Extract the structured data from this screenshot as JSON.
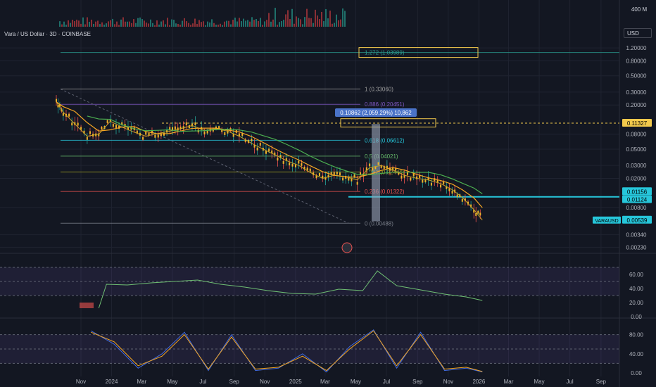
{
  "header": {
    "title": "Vara / US Dollar · 3D · COINBASE",
    "currency": "USD"
  },
  "colors": {
    "background": "#131722",
    "grid": "#1f2330",
    "up": "#26a69a",
    "down": "#ef5350",
    "candle_body": "#f0b429",
    "ema_orange": "#f5a623",
    "sma_green": "#4caf50",
    "rsi": "#6fbf73",
    "stoch_k": "#3f6ae0",
    "stoch_d": "#f5a623",
    "yellow_line": "#f2c94c"
  },
  "chart_data": [
    {
      "type": "line",
      "title": "Vara / US Dollar · 3D · COINBASE",
      "symbol": "VARAUSD",
      "scale": "log",
      "x_ticks": [
        "Nov",
        "2024",
        "Mar",
        "May",
        "Jul",
        "Sep",
        "Nov",
        "2025",
        "Mar",
        "May",
        "Jul",
        "Sep",
        "Nov",
        "2026",
        "Mar",
        "May",
        "Jul",
        "Sep"
      ],
      "y_ticks": [
        "1.20000",
        "0.80000",
        "0.50000",
        "0.30000",
        "0.20000",
        "0.08000",
        "0.05000",
        "0.03000",
        "0.02000",
        "0.00800",
        "0.00340",
        "0.00230"
      ],
      "series": [
        {
          "name": "",
          "x": [
            "2023-10-01",
            "2023-10-10",
            "2023-10-25",
            "2023-11-10",
            "2023-11-25",
            "2023-12-10",
            "2023-12-25",
            "2024-01-10",
            "2024-01-25",
            "2024-02-10",
            "2024-02-25",
            "2024-03-10",
            "2024-03-25",
            "2024-04-10",
            "2024-04-25",
            "2024-05-10",
            "2024-05-25",
            "2024-06-10",
            "2024-06-25",
            "2024-07-10",
            "2024-07-25",
            "2024-08-10",
            "2024-08-25",
            "2024-09-10",
            "2024-09-25",
            "2024-10-10",
            "2024-10-25",
            "2024-11-10",
            "2024-11-25",
            "2024-12-10",
            "2024-12-25",
            "2025-01-10",
            "2025-01-25",
            "2025-02-10",
            "2025-02-25",
            "2025-03-10",
            "2025-03-25",
            "2025-04-05"
          ],
          "values": [
            0.22,
            0.16,
            0.11,
            0.075,
            0.08,
            0.12,
            0.1,
            0.085,
            0.075,
            0.082,
            0.088,
            0.095,
            0.105,
            0.09,
            0.095,
            0.088,
            0.075,
            0.06,
            0.05,
            0.042,
            0.035,
            0.03,
            0.024,
            0.02,
            0.022,
            0.021,
            0.019,
            0.028,
            0.03,
            0.026,
            0.022,
            0.02,
            0.019,
            0.017,
            0.014,
            0.011,
            0.0075,
            0.00539
          ]
        }
      ],
      "price_labels": [
        "0.11327",
        "0.01156",
        "0.01124",
        "0.00539"
      ],
      "fib_levels": [
        {
          "label": "1.272 (1.03989)"
        },
        {
          "label": "1 (0.33060)"
        },
        {
          "label": "0.886 (0.20451)"
        },
        {
          "label": "0.618 (0.06612)"
        },
        {
          "label": "0.5 (0.04021)"
        },
        {
          "label": "0.382 (0.02446)"
        },
        {
          "label": "0.236 (0.01322)"
        },
        {
          "label": "0 (0.00488)"
        }
      ],
      "measure_label": "0.10862 (2,059.29%) 10,862",
      "volume_label": "400 M"
    },
    {
      "type": "line",
      "title": "",
      "y_ticks": [
        "60.00",
        "40.00",
        "20.00",
        "0.00"
      ],
      "series": [
        {
          "name": "",
          "x": [
            "2023-11-25",
            "2023-12-05",
            "2024-01-01",
            "2024-02-01",
            "2024-03-01",
            "2024-04-01",
            "2024-05-01",
            "2024-06-01",
            "2024-07-01",
            "2024-08-01",
            "2024-09-01",
            "2024-10-01",
            "2024-11-01",
            "2024-11-20",
            "2024-12-15",
            "2025-01-15",
            "2025-02-15",
            "2025-03-15",
            "2025-04-05"
          ],
          "values": [
            12,
            46,
            45,
            48,
            50,
            52,
            46,
            42,
            37,
            33,
            32,
            39,
            37,
            65,
            44,
            38,
            32,
            28,
            23
          ]
        }
      ]
    },
    {
      "type": "line",
      "title": "",
      "y_ticks": [
        "80.00",
        "40.00",
        "0.00"
      ],
      "series": [
        {
          "name": "",
          "x": [
            "2023-11-15",
            "2023-12-15",
            "2024-01-15",
            "2024-02-15",
            "2024-03-15",
            "2024-04-15",
            "2024-05-15",
            "2024-06-15",
            "2024-07-15",
            "2024-08-15",
            "2024-09-15",
            "2024-10-15",
            "2024-11-15",
            "2024-12-15",
            "2025-01-15",
            "2025-02-15",
            "2025-03-15",
            "2025-04-05"
          ],
          "values": [
            88,
            60,
            10,
            40,
            85,
            5,
            80,
            5,
            10,
            40,
            2,
            55,
            90,
            10,
            85,
            5,
            10,
            2
          ]
        },
        {
          "name": "",
          "x": [
            "2023-11-15",
            "2023-12-15",
            "2024-01-15",
            "2024-02-15",
            "2024-03-15",
            "2024-04-15",
            "2024-05-15",
            "2024-06-15",
            "2024-07-15",
            "2024-08-15",
            "2024-09-15",
            "2024-10-15",
            "2024-11-15",
            "2024-12-15",
            "2025-01-15",
            "2025-02-15",
            "2025-03-15",
            "2025-04-05"
          ],
          "values": [
            85,
            65,
            15,
            35,
            80,
            8,
            75,
            8,
            12,
            35,
            5,
            50,
            88,
            15,
            80,
            8,
            12,
            3
          ]
        }
      ]
    }
  ]
}
